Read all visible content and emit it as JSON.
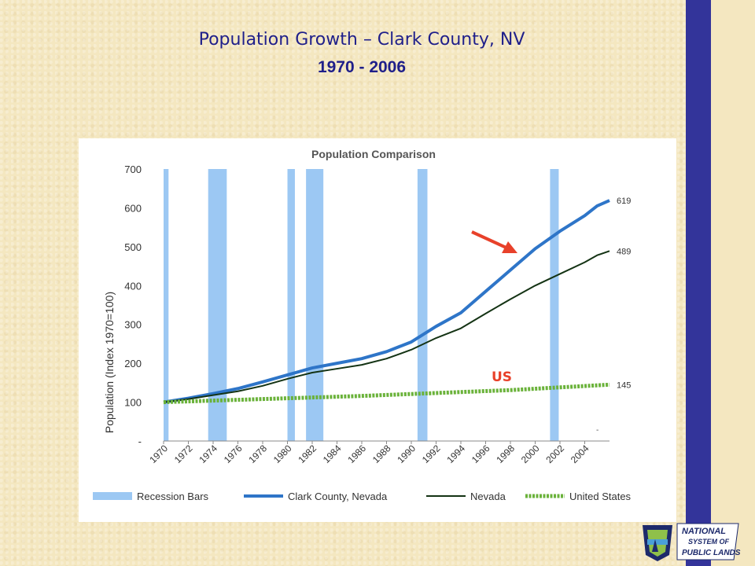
{
  "slide": {
    "title": "Population Growth – Clark County, NV",
    "subtitle": "1970 - 2006"
  },
  "logo": {
    "line1": "NATIONAL",
    "line2": "SYSTEM OF",
    "line3": "PUBLIC LANDS"
  },
  "chart_data": {
    "type": "line",
    "title": "Population Comparison",
    "xlabel": "",
    "ylabel": "Population (Index 1970=100)",
    "xlim": [
      1970,
      2006
    ],
    "ylim": [
      0,
      700
    ],
    "y_ticks": [
      {
        "value": 0,
        "label": "-"
      },
      {
        "value": 100,
        "label": "100"
      },
      {
        "value": 200,
        "label": "200"
      },
      {
        "value": 300,
        "label": "300"
      },
      {
        "value": 400,
        "label": "400"
      },
      {
        "value": 500,
        "label": "500"
      },
      {
        "value": 600,
        "label": "600"
      },
      {
        "value": 700,
        "label": "700"
      }
    ],
    "x_ticks": [
      "1970",
      "1972",
      "1974",
      "1976",
      "1978",
      "1980",
      "1982",
      "1984",
      "1986",
      "1988",
      "1990",
      "1992",
      "1994",
      "1996",
      "1998",
      "2000",
      "2002",
      "2004"
    ],
    "recession_bars": [
      {
        "start": 1970.0,
        "end": 1970.4
      },
      {
        "start": 1973.6,
        "end": 1975.1
      },
      {
        "start": 1980.0,
        "end": 1980.6
      },
      {
        "start": 1981.5,
        "end": 1982.9
      },
      {
        "start": 1990.5,
        "end": 1991.3
      },
      {
        "start": 2001.2,
        "end": 2001.9
      }
    ],
    "series": [
      {
        "name": "Clark County, Nevada",
        "color": "#2e75c8",
        "end_label": "619",
        "x": [
          1970,
          1972,
          1974,
          1976,
          1978,
          1980,
          1982,
          1984,
          1986,
          1988,
          1990,
          1992,
          1994,
          1996,
          1998,
          2000,
          2002,
          2004,
          2005,
          2006
        ],
        "y": [
          100,
          110,
          122,
          135,
          152,
          170,
          188,
          200,
          212,
          230,
          255,
          295,
          330,
          385,
          440,
          495,
          540,
          580,
          605,
          619
        ]
      },
      {
        "name": "Nevada",
        "color": "#143314",
        "end_label": "489",
        "x": [
          1970,
          1972,
          1974,
          1976,
          1978,
          1980,
          1982,
          1984,
          1986,
          1988,
          1990,
          1992,
          1994,
          1996,
          1998,
          2000,
          2002,
          2004,
          2005,
          2006
        ],
        "y": [
          100,
          108,
          118,
          128,
          142,
          160,
          176,
          186,
          196,
          212,
          235,
          265,
          290,
          328,
          365,
          400,
          430,
          460,
          478,
          489
        ]
      },
      {
        "name": "United States",
        "color": "#6ab23a",
        "end_label": "145",
        "x": [
          1970,
          1974,
          1978,
          1982,
          1986,
          1990,
          1994,
          1998,
          2002,
          2006
        ],
        "y": [
          100,
          104,
          108,
          112,
          116,
          121,
          126,
          131,
          138,
          145
        ]
      }
    ],
    "legend": {
      "placement": "bottom",
      "items": [
        "Recession Bars",
        "Clark County, Nevada",
        "Nevada",
        "United States"
      ]
    },
    "annotations": [
      {
        "text": "US",
        "color": "#e8412a"
      },
      {
        "text": "-",
        "color": "#555555"
      }
    ]
  }
}
